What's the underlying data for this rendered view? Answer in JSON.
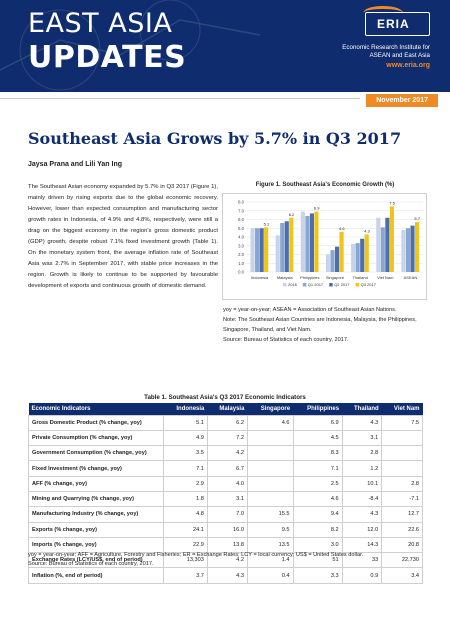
{
  "header": {
    "title_line1": "EAST ASIA",
    "title_line2": "UPDATES",
    "logo_text": "ERIA",
    "org_line1": "Economic Research Institute for",
    "org_line2": "ASEAN and East Asia",
    "website": "www.eria.org",
    "date": "November 2017"
  },
  "article": {
    "title": "Southeast Asia Grows by 5.7% in Q3 2017",
    "authors": "Jaysa Prana and Lili Yan Ing",
    "paragraph": "The Southeast Asian economy expanded by 5.7% in Q3 2017 (Figure 1), mainly driven by rising exports due to the global economic recovery. However, lower than expected consumption and manufacturing sector growth rates in Indonesia, of 4.9% and 4.8%, respectively, were still a drag on the biggest economy in the region's gross domestic product (GDP) growth, despite robust 7.1% fixed investment growth (Table 1). On the monetary system front, the average inflation rate of Southeast Asia was 2.7% in September 2017, with stable price increases in the region. Growth is likely to continue to be supported by favourable development of exports and continuous growth of domestic demand."
  },
  "figure": {
    "title": "Figure 1. Southeast Asia's Economic Growth (%)",
    "note1": "yoy = year-on-year; ASEAN = Association of Southeast Asian Nations.",
    "note2": "Note: The Southeast Asian Countries are Indonesia, Malaysia, the Philippines, Singapore, Thailand, and Viet Nam.",
    "note3": "Source: Bureau of Statistics of each country, 2017."
  },
  "chart_data": {
    "type": "bar",
    "categories": [
      "Indonesia",
      "Malaysia",
      "Philippines",
      "Singapore",
      "Thailand",
      "Viet Nam",
      "ASEAN"
    ],
    "series": [
      {
        "name": "2016",
        "values": [
          5.0,
          4.2,
          6.9,
          2.0,
          3.2,
          6.2,
          4.8
        ]
      },
      {
        "name": "Q1 2017",
        "values": [
          5.0,
          5.6,
          6.4,
          2.5,
          3.3,
          5.1,
          5.0
        ]
      },
      {
        "name": "Q2 2017",
        "values": [
          5.0,
          5.8,
          6.7,
          2.9,
          3.8,
          6.2,
          5.3
        ]
      },
      {
        "name": "Q3 2017",
        "values": [
          5.1,
          6.2,
          6.9,
          4.6,
          4.3,
          7.5,
          5.7
        ]
      }
    ],
    "labels_last": [
      "5.1",
      "6.2",
      "6.9",
      "4.6",
      "4.3",
      "7.5",
      "5.7"
    ],
    "ylim": [
      0,
      8
    ],
    "yticks": [
      "0.0",
      "1.0",
      "2.0",
      "3.0",
      "4.0",
      "5.0",
      "6.0",
      "7.0",
      "8.0"
    ],
    "colors": [
      "#c7d3e8",
      "#8aa5cf",
      "#4a6fae",
      "#f0c418"
    ],
    "grid": true,
    "legend_position": "bottom"
  },
  "table": {
    "title": "Table 1. Southeast Asia's Q3 2017 Economic Indicators",
    "headers": [
      "Economic Indicators",
      "Indonesia",
      "Malaysia",
      "Singapore",
      "Philippines",
      "Thailand",
      "Viet Nam"
    ],
    "rows": [
      [
        "Gross Domestic Product (% change, yoy)",
        "5.1",
        "6.2",
        "4.6",
        "6.9",
        "4.3",
        "7.5"
      ],
      [
        "Private Consumption (% change, yoy)",
        "4.9",
        "7.2",
        "",
        "4.5",
        "3.1",
        ""
      ],
      [
        "Government Consumption (% change, yoy)",
        "3.5",
        "4.2",
        "",
        "8.3",
        "2.8",
        ""
      ],
      [
        "Fixed Investment (% change, yoy)",
        "7.1",
        "6.7",
        "",
        "7.1",
        "1.2",
        ""
      ],
      [
        "AFF (% change, yoy)",
        "2.9",
        "4.0",
        "",
        "2.5",
        "10.1",
        "2.8"
      ],
      [
        "Mining and Quarrying (% change, yoy)",
        "1.8",
        "3.1",
        "",
        "4.6",
        "-8.4",
        "-7.1"
      ],
      [
        "Manufacturing Industry (% change, yoy)",
        "4.8",
        "7.0",
        "15.5",
        "9.4",
        "4.3",
        "12.7"
      ],
      [
        "Exports (% change, yoy)",
        "24.1",
        "16.0",
        "9.5",
        "8.2",
        "12.0",
        "22.6"
      ],
      [
        "Imports (% change, yoy)",
        "22.9",
        "13.8",
        "13.5",
        "3.0",
        "14.3",
        "20.8"
      ],
      [
        "Exchange Rates (LCY/US$, end of period)",
        "13,303",
        "4.2",
        "1.4",
        "51",
        "33",
        "22,730"
      ],
      [
        "Inflation (%, end of period)",
        "3.7",
        "4.3",
        "0.4",
        "3.3",
        "0.9",
        "3.4"
      ]
    ],
    "note1": "yoy = year-on-year; AFF = Agriculture, Forestry and Fisheries; ER = Exchange Rates; LCY = local currency; US$ = United States dollar.",
    "note2": "Source: Bureau of Statistics of each country, 2017."
  }
}
